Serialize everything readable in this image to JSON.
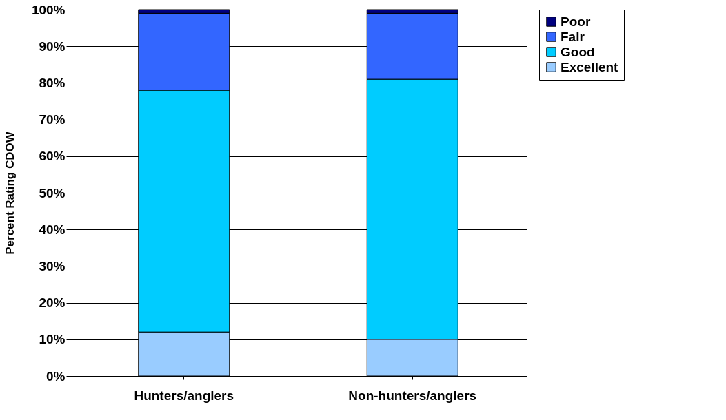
{
  "chart_data": {
    "type": "bar",
    "stacked": true,
    "ylabel": "Percent Rating CDOW",
    "categories": [
      "Hunters/anglers",
      "Non-hunters/anglers"
    ],
    "series": [
      {
        "name": "Excellent",
        "color": "#99ccff",
        "values": [
          12,
          10
        ]
      },
      {
        "name": "Good",
        "color": "#00ccff",
        "values": [
          66,
          71
        ]
      },
      {
        "name": "Fair",
        "color": "#3366ff",
        "values": [
          21,
          18
        ]
      },
      {
        "name": "Poor",
        "color": "#000080",
        "values": [
          1,
          1
        ]
      }
    ],
    "ylim": [
      0,
      100
    ],
    "yticks": [
      {
        "value": 0,
        "label": "0%"
      },
      {
        "value": 10,
        "label": "10%"
      },
      {
        "value": 20,
        "label": "20%"
      },
      {
        "value": 30,
        "label": "30%"
      },
      {
        "value": 40,
        "label": "40%"
      },
      {
        "value": 50,
        "label": "50%"
      },
      {
        "value": 60,
        "label": "60%"
      },
      {
        "value": 70,
        "label": "70%"
      },
      {
        "value": 80,
        "label": "80%"
      },
      {
        "value": 90,
        "label": "90%"
      },
      {
        "value": 100,
        "label": "100%"
      }
    ],
    "grid": "y",
    "legend": "right"
  }
}
